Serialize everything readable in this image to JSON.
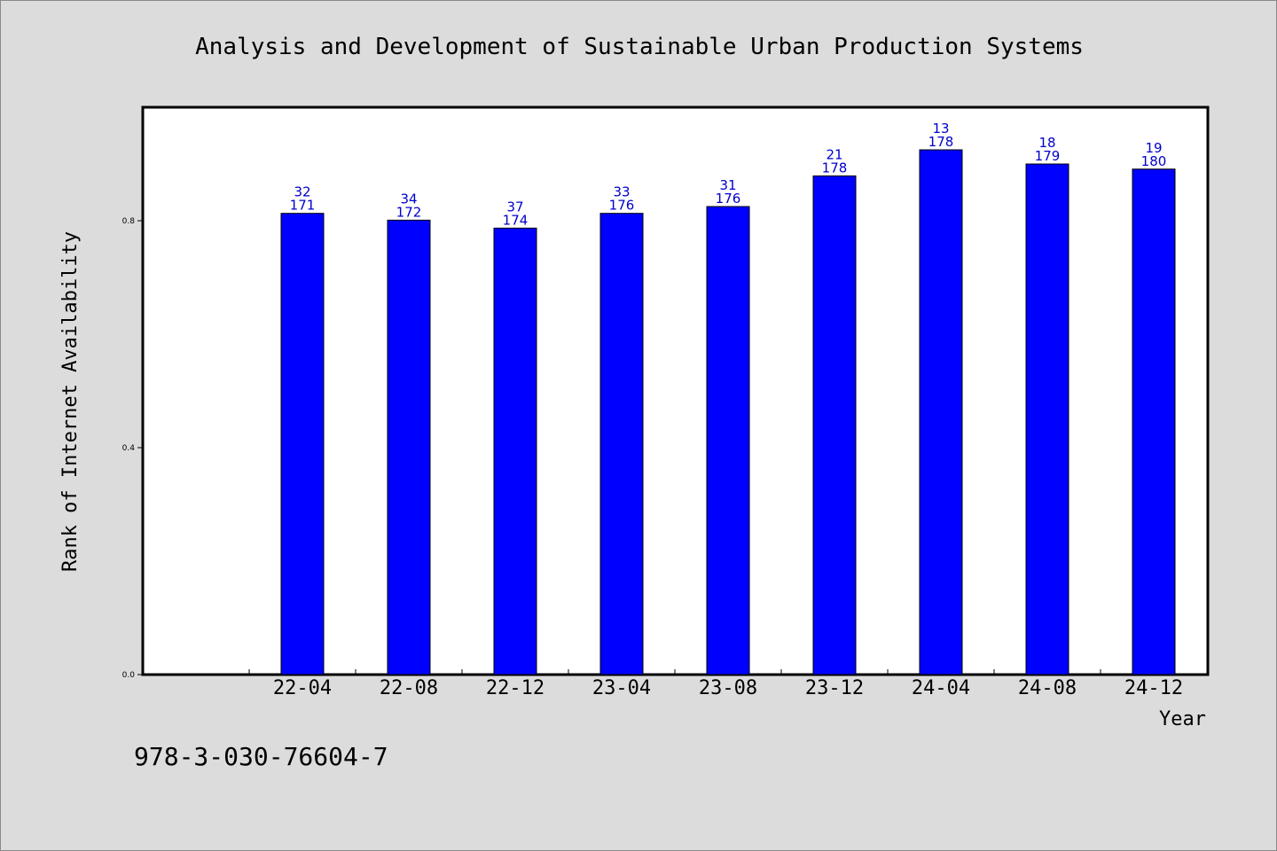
{
  "chart_data": {
    "type": "bar",
    "title": "Analysis and Development of Sustainable Urban Production Systems",
    "xlabel": "Year",
    "ylabel": "Rank of Internet Availability",
    "categories": [
      "22-04",
      "22-08",
      "22-12",
      "23-04",
      "23-08",
      "23-12",
      "24-04",
      "24-08",
      "24-12"
    ],
    "values": [
      0.813,
      0.801,
      0.787,
      0.813,
      0.825,
      0.879,
      0.925,
      0.9,
      0.891
    ],
    "label_top": [
      "32",
      "34",
      "37",
      "33",
      "31",
      "21",
      "13",
      "18",
      "19"
    ],
    "label_bottom": [
      "171",
      "172",
      "174",
      "176",
      "176",
      "178",
      "178",
      "179",
      "180"
    ],
    "yticks": [
      "0.0",
      "0.4",
      "0.8"
    ],
    "ylim": [
      0,
      1
    ],
    "grid": false,
    "bar_color": "#0000ff",
    "label_color": "#0000cc"
  },
  "footer": {
    "isbn": "978-3-030-76604-7"
  }
}
